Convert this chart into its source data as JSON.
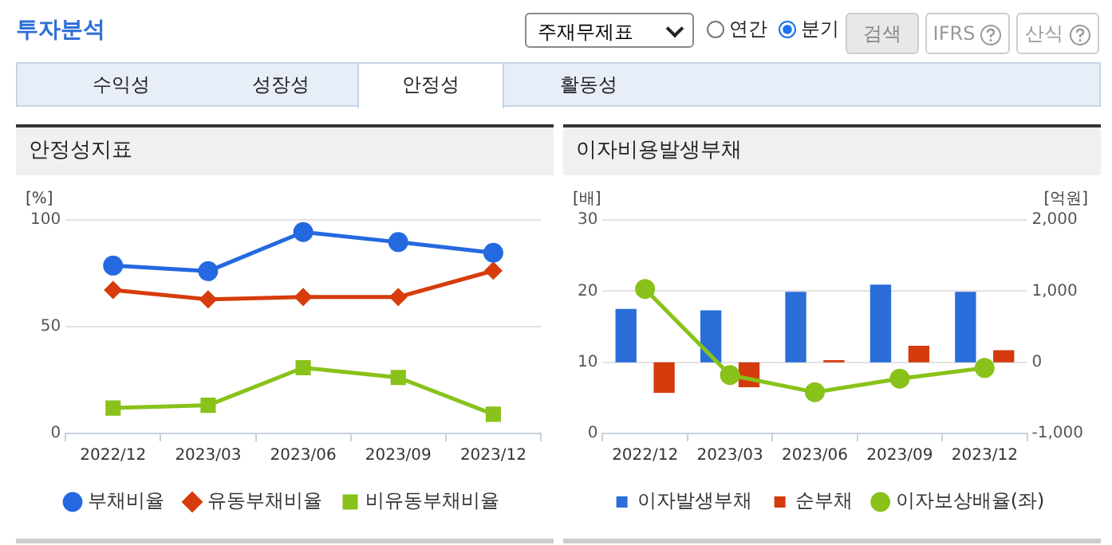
{
  "chart_data": [
    {
      "type": "other",
      "title": "투자분석",
      "annotations": [
        "주재무제표",
        "연간",
        "분기",
        "검색",
        "IFRS",
        "산식",
        "수익성",
        "성장성",
        "안정성",
        "활동성"
      ]
    },
    {
      "type": "line",
      "title": "안정성지표",
      "ylabel": "[%]",
      "categories": [
        "2022/12",
        "2023/03",
        "2023/06",
        "2023/09",
        "2023/12"
      ],
      "ylim": [
        0,
        100
      ],
      "yticks": [
        0,
        50,
        100
      ],
      "grid": "y",
      "legend": "bottom",
      "series": [
        {
          "name": "부채비율",
          "color": "#2469e0",
          "marker": "circle",
          "values": [
            78.6,
            76,
            94.3,
            89.6,
            84.6
          ]
        },
        {
          "name": "유동부채비율",
          "color": "#d63c0c",
          "marker": "diamond",
          "values": [
            67.2,
            62.8,
            63.9,
            63.9,
            76.2
          ]
        },
        {
          "name": "비유동부채비율",
          "color": "#88c21a",
          "marker": "square",
          "values": [
            11.9,
            13.2,
            30.8,
            26.2,
            9.0
          ]
        }
      ]
    },
    {
      "type": "bar",
      "title": "이자비용발생부채",
      "ylabel": "[배]",
      "y2label": "[억원]",
      "categories": [
        "2022/12",
        "2023/03",
        "2023/06",
        "2023/09",
        "2023/12"
      ],
      "ylim": [
        0,
        30
      ],
      "yticks": [
        0,
        10,
        20,
        30
      ],
      "y2lim": [
        -1000,
        2000
      ],
      "y2ticks": [
        {
          "value": -1000,
          "label": "-1,000"
        },
        {
          "value": 0,
          "label": "0"
        },
        {
          "value": 1000,
          "label": "1,000"
        },
        {
          "value": 2000,
          "label": "2,000"
        }
      ],
      "grid": "y",
      "legend": "bottom",
      "series": [
        {
          "name": "이자발생부채",
          "color": "#2a6dd9",
          "axis": "y2",
          "values": [
            750,
            730,
            990,
            1090,
            990
          ]
        },
        {
          "name": "순부채",
          "color": "#d43a0b",
          "axis": "y2",
          "values": [
            -430,
            -350,
            30,
            230,
            170
          ]
        },
        {
          "name": "이자보상배율(좌)",
          "type": "line",
          "color": "#88c21a",
          "marker": "circle",
          "values": [
            20.3,
            8.2,
            5.8,
            7.7,
            9.2
          ]
        }
      ]
    }
  ]
}
